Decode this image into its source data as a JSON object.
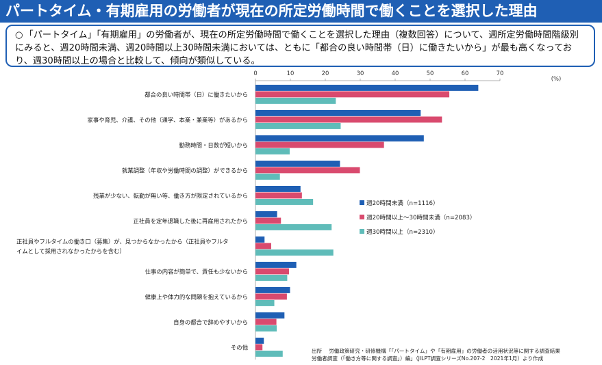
{
  "title": "パートタイム・有期雇用の労働者が現在の所定労働時間で働くことを選択した理由",
  "summary": {
    "bullet": "○",
    "text": "「パートタイム」「有期雇用」の労働者が、現在の所定労働時間で働くことを選択した理由（複数回答）について、週所定労働時間階級別にみると、週20時間未満、週20時間以上30時間未満においては、ともに「都合の良い時間帯（日）に働きたいから」が最も高くなっており、週30時間以上の場合と比較して、傾向が類似している。"
  },
  "chart_data": {
    "type": "bar",
    "orientation": "horizontal",
    "unit": "(%)",
    "xlim": [
      0,
      70
    ],
    "ticks": [
      0,
      10,
      20,
      30,
      40,
      50,
      60,
      70
    ],
    "grid": false,
    "legend_position": "right-middle",
    "categories": [
      [
        "都合の良い時間帯（日）に働きたいから"
      ],
      [
        "家事や育児、介護、その他（通学、本業・兼業等）があるから"
      ],
      [
        "勤務時間・日数が短いから"
      ],
      [
        "就業調整（年収や労働時間の調整）ができるから"
      ],
      [
        "残業が少ない、転勤が無い等、働き方が限定されているから"
      ],
      [
        "正社員を定年退職した後に再雇用されたから"
      ],
      [
        "正社員やフルタイムの働き口（募集）が、見つからなかったから（正社員やフルタ",
        "イムとして採用されなかったからを含む）"
      ],
      [
        "仕事の内容が簡単で、責任も少ないから"
      ],
      [
        "健康上や体力的な問題を抱えているから"
      ],
      [
        "自身の都合で辞めやすいから"
      ],
      [
        "その他"
      ]
    ],
    "series": [
      {
        "name": "週20時間未満（n=1116）",
        "color": "#1f5fb4",
        "values": [
          63.8,
          47.3,
          48.2,
          24.2,
          12.9,
          6.2,
          2.6,
          11.7,
          9.9,
          8.3,
          2.4
        ]
      },
      {
        "name": "週20時間以上～30時間未満（n=2083）",
        "color": "#d94a6e",
        "values": [
          55.5,
          53.4,
          36.8,
          29.9,
          13.3,
          7.3,
          4.5,
          9.6,
          9.0,
          6.0,
          2.0
        ]
      },
      {
        "name": "週30時間以上（n=2310）",
        "color": "#5fbcb9",
        "values": [
          23.0,
          24.4,
          9.8,
          7.0,
          16.5,
          21.8,
          22.3,
          9.1,
          5.4,
          6.1,
          7.8
        ]
      }
    ]
  },
  "source": {
    "label": "出所",
    "line1": "労働政策研究・研修機構「「パートタイム」や「有期雇用」の労働者の活用状況等に関する調査結果",
    "line2": "労働者調査（「働き方等に関する調査」）編」（JILPT調査シリーズNo.207-2　2021年1月）より作成"
  }
}
